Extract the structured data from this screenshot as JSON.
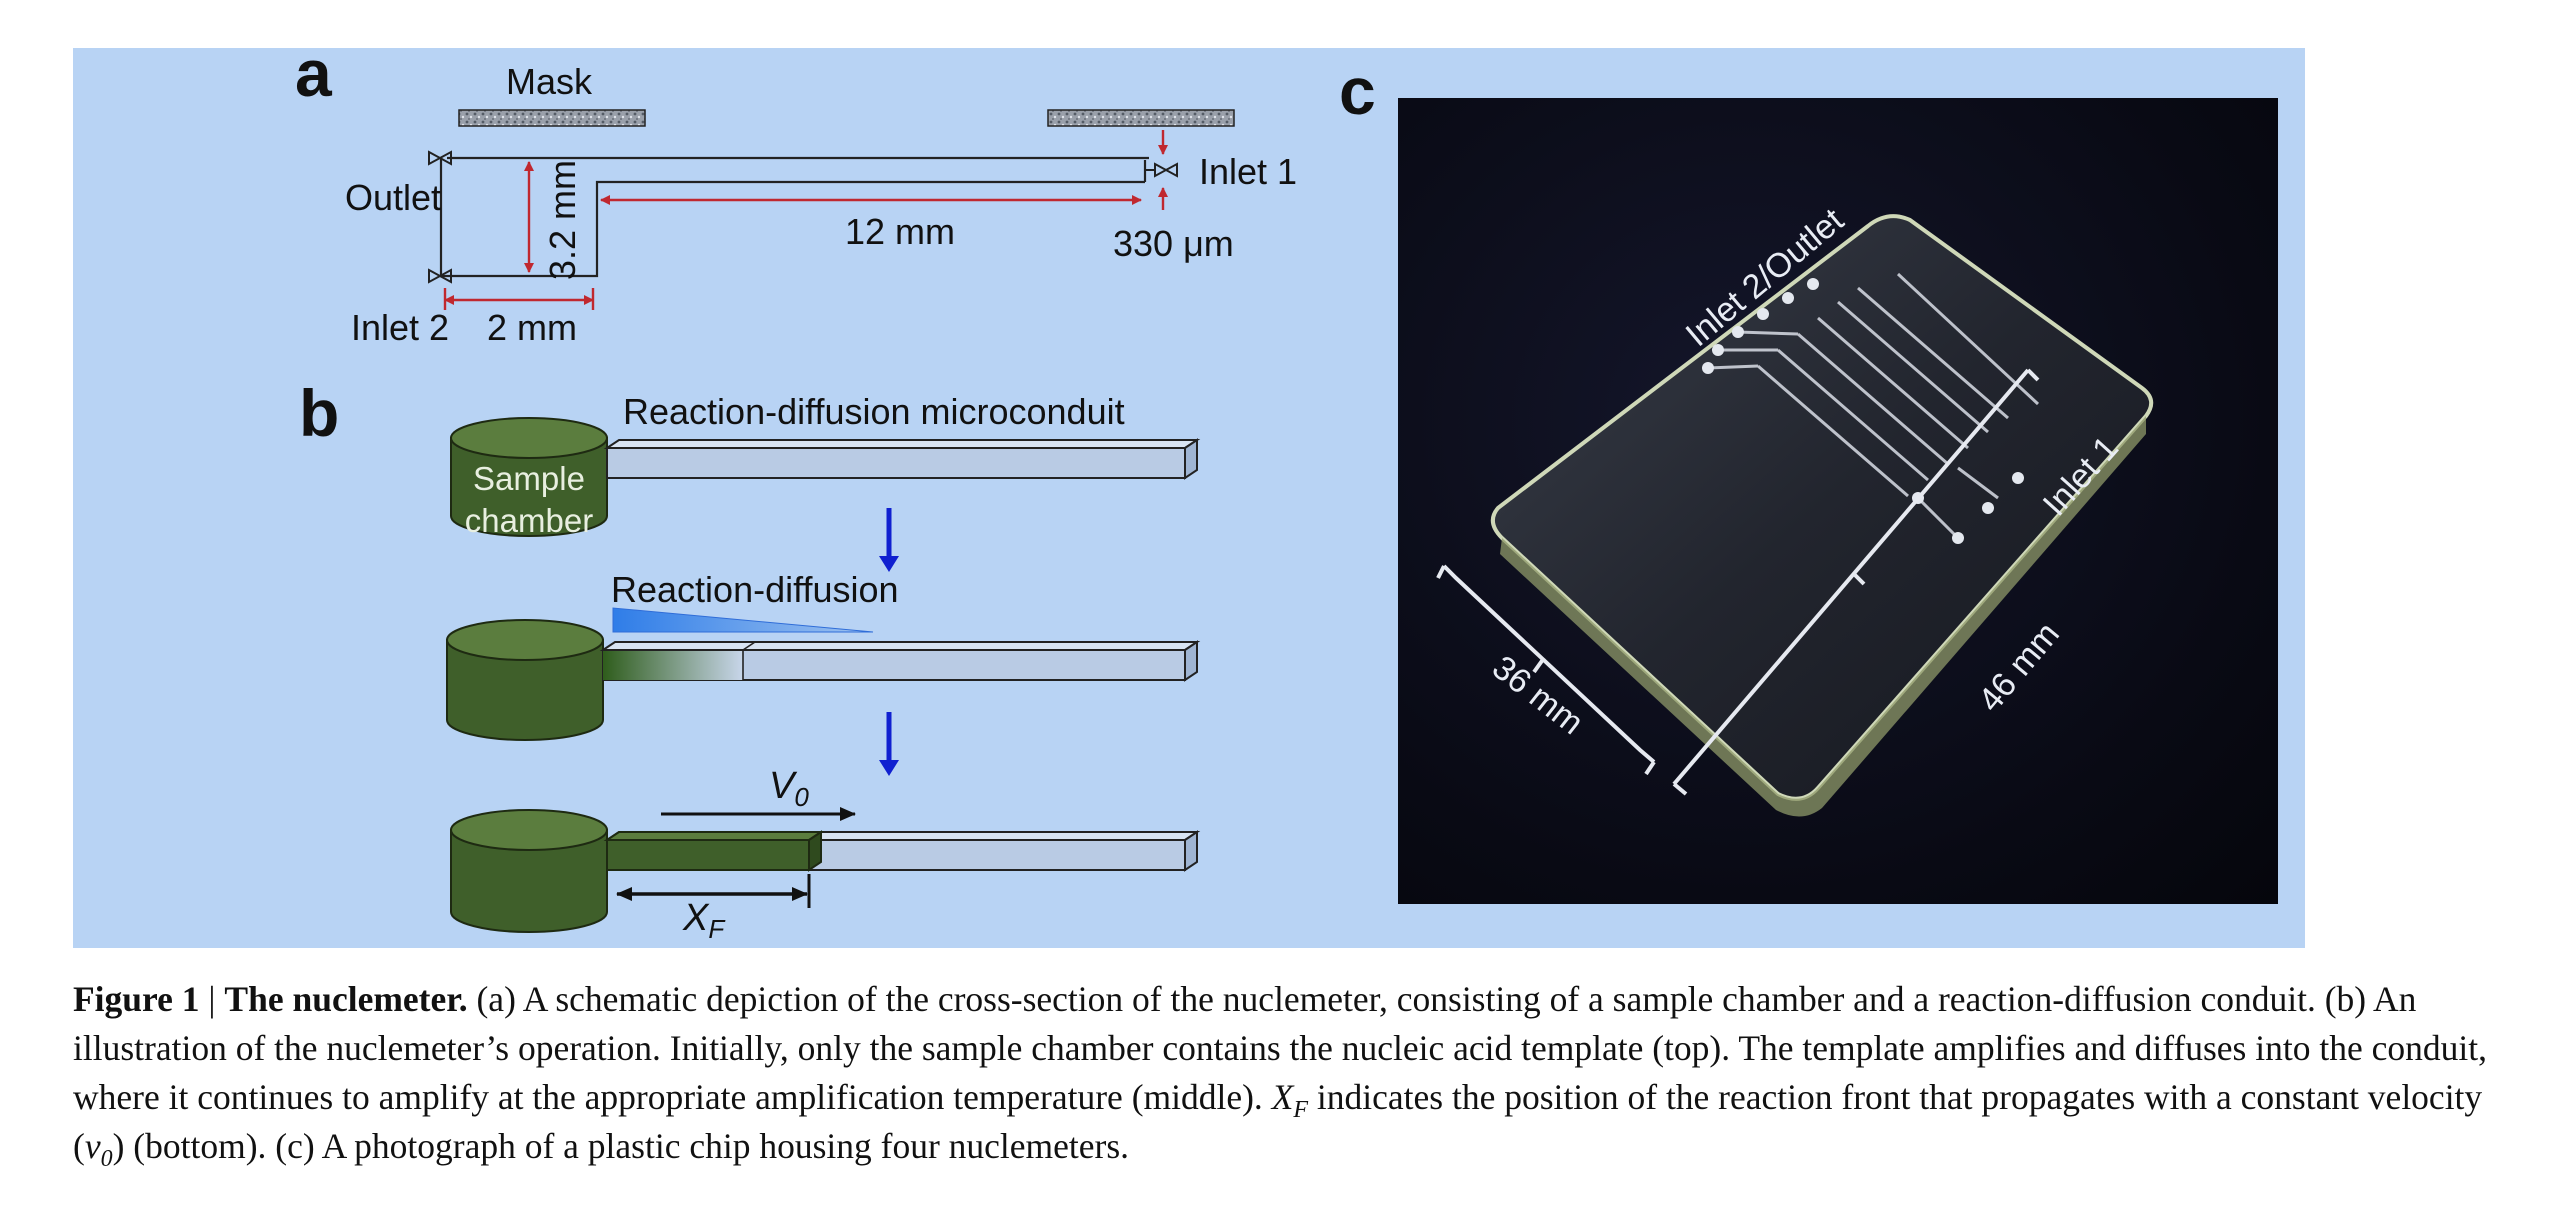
{
  "panel_a": {
    "letter": "a",
    "mask": "Mask",
    "outlet": "Outlet",
    "inlet1": "Inlet 1",
    "inlet2": "Inlet 2",
    "dim_height": "3.2 mm",
    "dim_chamber_width": "2 mm",
    "dim_conduit_length": "12 mm",
    "dim_conduit_height": "330 μm"
  },
  "panel_b": {
    "letter": "b",
    "conduit_label": "Reaction-diffusion microconduit",
    "chamber_line1": "Sample",
    "chamber_line2": "chamber",
    "stage2_label": "Reaction-diffusion",
    "velocity_symbol": "V",
    "velocity_sub": "0",
    "front_symbol": "X",
    "front_sub": "F"
  },
  "panel_c": {
    "letter": "c",
    "inlet2_outlet": "Inlet 2/Outlet",
    "inlet1": "Inlet 1",
    "dim1": "36 mm",
    "dim2": "46 mm"
  },
  "caption": {
    "fig_label": "Figure 1",
    "separator": " | ",
    "title": "The nuclemeter.",
    "part1": " (a) A schematic depiction of the cross-section of the nuclemeter, consisting of a sample chamber and a reaction-diffusion conduit. (b) An illustration of the nuclemeter’s operation. Initially, only the sample chamber contains the nucleic acid template (top). The template amplifies and diffuses into the conduit, where it continues to amplify at the appropriate amplification temperature (middle). ",
    "xf_symbol": "X",
    "xf_sub": "F",
    "part2": " indicates the position of the reaction front that propagates with a constant velocity (",
    "v_symbol": "v",
    "v_sub": "0",
    "part3": ") (bottom). (c) A photograph of a plastic chip housing four nuclemeters."
  },
  "colors": {
    "panel_bg": "#b8d3f4",
    "chamber_green": "#3f5f2a",
    "conduit_fill": "#b9cbe4",
    "dimension_red": "#c0282f",
    "arrow_blue": "#1020d0"
  }
}
